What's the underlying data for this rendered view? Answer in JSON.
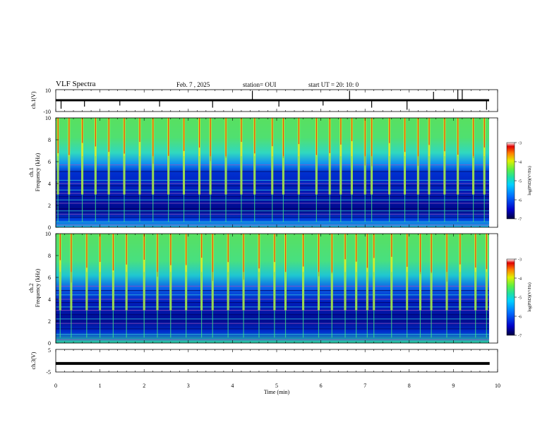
{
  "header": {
    "title": "VLF Spectra",
    "date": "Feb. 7 , 2025",
    "station": "station= OUI",
    "start_time": "start UT =  20: 10: 0"
  },
  "colors": {
    "colormap": [
      "#000040",
      "#0000c8",
      "#0070ff",
      "#00d0ff",
      "#20e0a0",
      "#60f040",
      "#e0f000",
      "#ff8000",
      "#e00000",
      "#ffffff"
    ]
  },
  "chart_data": [
    {
      "type": "line",
      "id": "ch1",
      "ylabel": "ch.1(V)",
      "ylim": [
        -10,
        10
      ],
      "yticks": [
        "10",
        "-10"
      ],
      "xlim": [
        0,
        10
      ],
      "description_series": "baseline near 0 V with short negative spikes",
      "spikes": [
        {
          "x": 0.12,
          "y": -8
        },
        {
          "x": 0.65,
          "y": -6
        },
        {
          "x": 1.45,
          "y": -5
        },
        {
          "x": 2.35,
          "y": -6
        },
        {
          "x": 3.55,
          "y": -7
        },
        {
          "x": 4.45,
          "y": 9
        },
        {
          "x": 5.05,
          "y": -6
        },
        {
          "x": 6.05,
          "y": -5
        },
        {
          "x": 6.65,
          "y": 9
        },
        {
          "x": 7.15,
          "y": -7
        },
        {
          "x": 7.95,
          "y": -9
        },
        {
          "x": 8.55,
          "y": 8
        },
        {
          "x": 9.1,
          "y": 10
        },
        {
          "x": 9.2,
          "y": 10
        },
        {
          "x": 9.75,
          "y": -9
        }
      ]
    },
    {
      "type": "heatmap",
      "id": "ch1-spectrogram",
      "ylabel_channel": "ch.1",
      "ylabel": "Frequency (kHz)",
      "ylim": [
        0,
        10
      ],
      "yticks": [
        "0",
        "2",
        "4",
        "6",
        "8",
        "10"
      ],
      "xlim": [
        0,
        10
      ],
      "colorbar": {
        "label": "log(PSD)(V²/Hz)",
        "range": [
          -7,
          -3
        ],
        "ticks": [
          "-3",
          "-4",
          "-5",
          "-6",
          "-7"
        ]
      },
      "spherics_times_min": [
        0.05,
        0.3,
        0.6,
        0.9,
        1.2,
        1.55,
        1.9,
        2.2,
        2.55,
        2.9,
        3.25,
        3.5,
        3.85,
        4.2,
        4.5,
        4.9,
        5.15,
        5.5,
        5.9,
        6.2,
        6.45,
        6.7,
        7.0,
        7.15,
        7.55,
        7.9,
        8.2,
        8.45,
        8.8,
        9.1,
        9.45,
        9.7
      ],
      "line_frequencies_khz": [
        0.2,
        0.5,
        0.9,
        1.2,
        1.5,
        1.7,
        2.2,
        2.5,
        2.8,
        3.1,
        3.4,
        3.8,
        4.0,
        4.3,
        5.1,
        5.7
      ]
    },
    {
      "type": "heatmap",
      "id": "ch2-spectrogram",
      "ylabel_channel": "ch.2",
      "ylabel": "Frequency (kHz)",
      "ylim": [
        0,
        10
      ],
      "yticks": [
        "0",
        "2",
        "4",
        "6",
        "8",
        "10"
      ],
      "xlim": [
        0,
        10
      ],
      "colorbar": {
        "label": "log(PSD)(V²/Hz)",
        "range": [
          -7,
          -3
        ],
        "ticks": [
          "-3",
          "-4",
          "-5",
          "-6",
          "-7"
        ]
      },
      "spherics_times_min": [
        0.1,
        0.35,
        0.7,
        1.0,
        1.3,
        1.6,
        2.0,
        2.3,
        2.6,
        2.95,
        3.3,
        3.55,
        3.9,
        4.25,
        4.6,
        4.95,
        5.2,
        5.6,
        5.95,
        6.25,
        6.55,
        6.8,
        7.05,
        7.2,
        7.6,
        7.95,
        8.25,
        8.5,
        8.85,
        9.15,
        9.5,
        9.75
      ],
      "line_frequencies_khz": [
        0.3,
        0.8,
        1.3,
        1.8,
        2.2,
        2.6,
        3.0,
        3.3,
        3.7,
        4.0,
        4.4,
        4.8,
        5.2
      ]
    },
    {
      "type": "line",
      "id": "ch3",
      "ylabel": "ch.3(V)",
      "ylim": [
        -5,
        5
      ],
      "yticks": [
        "5",
        "-5"
      ],
      "xlim": [
        0,
        10
      ],
      "x": [
        0,
        9.82
      ],
      "y": [
        -1.2,
        -1.2
      ]
    }
  ],
  "xaxis": {
    "label": "Time (min)",
    "ticks": [
      "0",
      "1",
      "2",
      "3",
      "4",
      "5",
      "6",
      "7",
      "8",
      "9",
      "10"
    ]
  }
}
